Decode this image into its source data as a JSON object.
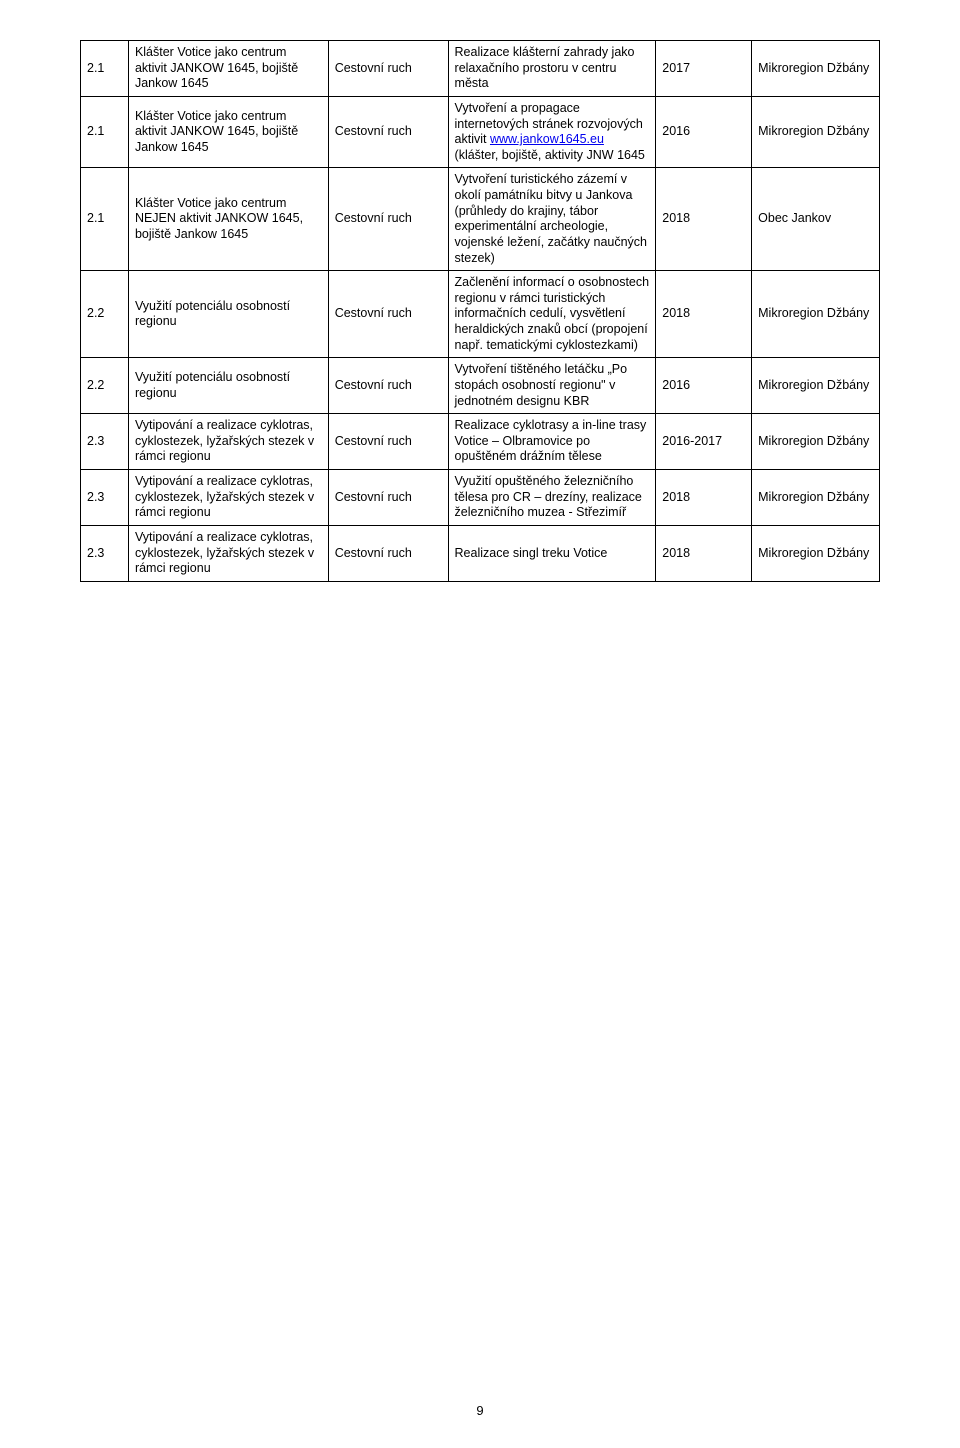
{
  "page_number": "9",
  "link_text": "www.jankow1645.eu",
  "rows": [
    {
      "num": "2.1",
      "name": "Klášter Votice jako centrum  aktivit JANKOW 1645, bojiště Jankow 1645",
      "type": "Cestovní ruch",
      "desc": "Realizace klášterní zahrady jako relaxačního prostoru v centru města",
      "year": "2017",
      "region": "Mikroregion Džbány"
    },
    {
      "num": "2.1",
      "name": "Klášter Votice jako centrum aktivit JANKOW 1645, bojiště Jankow 1645",
      "type": "Cestovní ruch",
      "desc_before": "Vytvoření a propagace internetových stránek rozvojových aktivit ",
      "desc_after": " (klášter, bojiště, aktivity JNW 1645",
      "has_link": true,
      "year": "2016",
      "region": "Mikroregion Džbány"
    },
    {
      "num": "2.1",
      "name": "Klášter Votice jako centrum NEJEN aktivit JANKOW 1645, bojiště Jankow 1645",
      "type": "Cestovní ruch",
      "desc": "Vytvoření turistického zázemí v okolí památníku bitvy u Jankova (průhledy do krajiny, tábor experimentální archeologie, vojenské ležení, začátky naučných stezek)",
      "year": "2018",
      "region": "Obec Jankov"
    },
    {
      "num": "2.2",
      "name": "Využití potenciálu osobností regionu",
      "type": "Cestovní ruch",
      "desc": "Začlenění informací o osobnostech regionu v rámci turistických informačních cedulí, vysvětlení heraldických znaků obcí (propojení např. tematickými cyklostezkami)",
      "year": "2018",
      "region": "Mikroregion Džbány"
    },
    {
      "num": "2.2",
      "name": "Využití potenciálu osobností regionu",
      "type": "Cestovní ruch",
      "desc": "Vytvoření tištěného letáčku „Po stopách osobností regionu\" v jednotném designu KBR",
      "year": "2016",
      "region": "Mikroregion Džbány"
    },
    {
      "num": "2.3",
      "name": "Vytipování a realizace cyklotras, cyklostezek, lyžařských stezek v rámci regionu",
      "type": "Cestovní ruch",
      "desc": "Realizace cyklotrasy a in-line trasy Votice – Olbramovice po opuštěném drážním tělese",
      "year": "2016-2017",
      "region": "Mikroregion Džbány"
    },
    {
      "num": "2.3",
      "name": "Vytipování a realizace cyklotras, cyklostezek, lyžařských stezek v rámci regionu",
      "type": "Cestovní ruch",
      "desc": "Využití opuštěného železničního tělesa pro CR – drezíny, realizace železničního muzea - Střezimíř",
      "year": "2018",
      "region": "Mikroregion Džbány"
    },
    {
      "num": "2.3",
      "name": "Vytipování a realizace cyklotras, cyklostezek, lyžařských stezek v rámci regionu",
      "type": "Cestovní ruch",
      "desc": "Realizace singl treku Votice",
      "year": "2018",
      "region": "Mikroregion Džbány"
    }
  ]
}
